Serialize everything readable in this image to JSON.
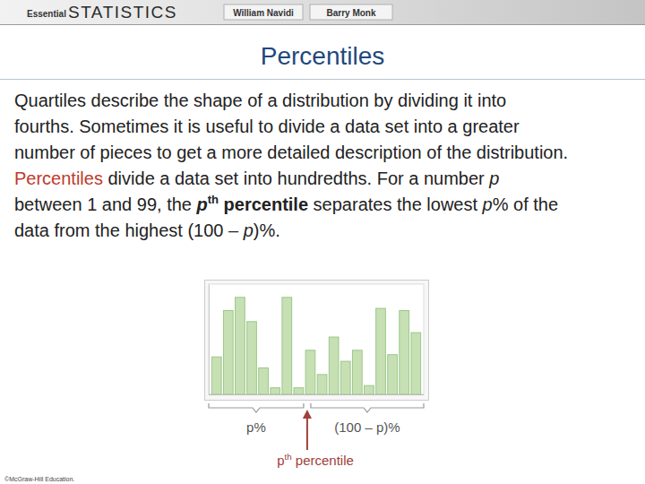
{
  "header": {
    "logo": [
      "Essential",
      "STATISTICS"
    ],
    "authors": [
      "William Navidi",
      "Barry Monk"
    ]
  },
  "title": "Percentiles",
  "body": [
    [
      {
        "text": "Quartiles describe the shape of a distribution by dividing it into"
      }
    ],
    [
      {
        "text": "fourths. Sometimes it is useful to divide a data set into a greater"
      }
    ],
    [
      {
        "text": "number of pieces to get a more detailed description of the distribution."
      }
    ],
    [
      {
        "text": "Percentiles",
        "style": "term"
      },
      {
        "text": " divide a data set into hundredths. For a number "
      },
      {
        "text": "p",
        "style": "italic"
      }
    ],
    [
      {
        "text": "between 1 and 99, the "
      },
      {
        "text": "p",
        "style": "bold-italic"
      },
      {
        "text": "th",
        "style": "bold-superscript"
      },
      {
        "text": " percentile",
        "style": "bold"
      },
      {
        "text": " separates the lowest "
      },
      {
        "text": "p",
        "style": "italic"
      },
      {
        "text": "% of the"
      }
    ],
    [
      {
        "text": "data from the highest (100 – "
      },
      {
        "text": "p",
        "style": "italic"
      },
      {
        "text": ")%."
      }
    ]
  ],
  "chart_data": {
    "type": "bar",
    "values": [
      34,
      76,
      88,
      66,
      24,
      6,
      88,
      6,
      40,
      18,
      52,
      30,
      40,
      8,
      78,
      36,
      76,
      56
    ],
    "ylim": [
      0,
      100
    ],
    "tick_labels": false,
    "color": "#c6e0b4",
    "annotations": [
      [
        {
          "text": "p%"
        }
      ],
      [
        {
          "text": "(100 – p)%"
        }
      ],
      [
        {
          "text": "p"
        },
        {
          "text": "th",
          "style": "superscript"
        },
        {
          "text": " percentile"
        }
      ]
    ]
  },
  "footer": "©McGraw-Hill Education."
}
